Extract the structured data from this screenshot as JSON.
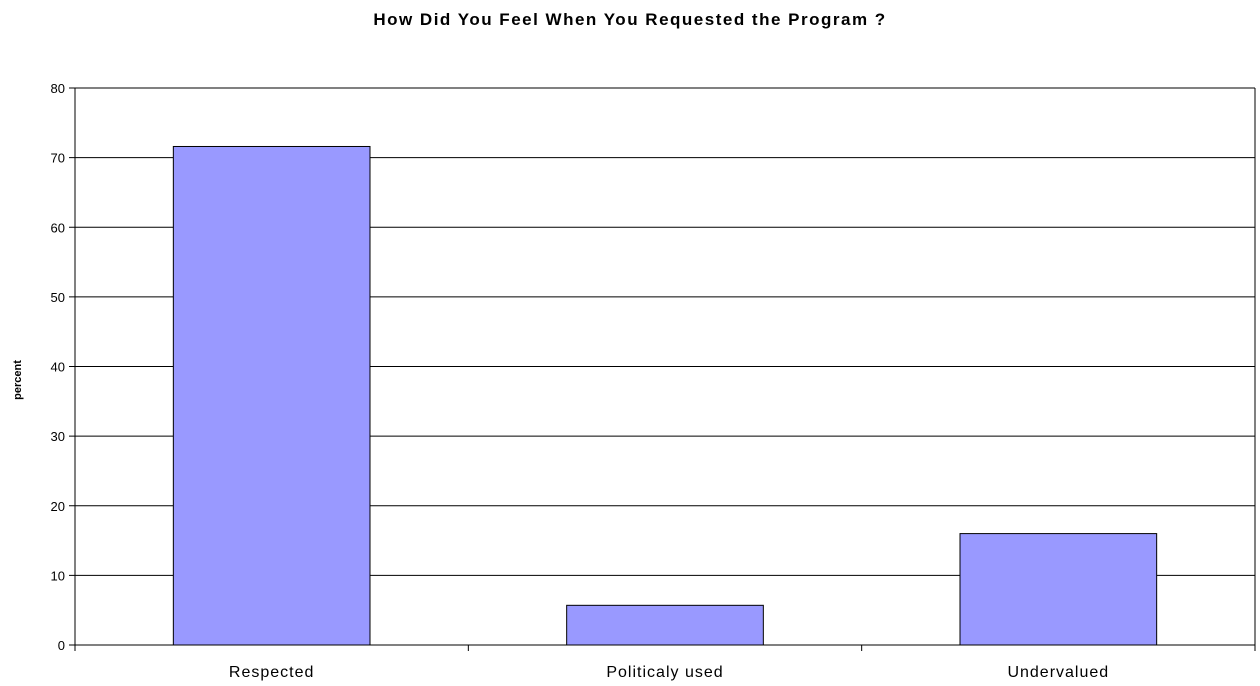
{
  "chart_data": {
    "type": "bar",
    "title": "How Did You Feel When You Requested the Program ?",
    "xlabel": "",
    "ylabel": "percent",
    "categories": [
      "Respected",
      "Politicaly used",
      "Undervalued"
    ],
    "values": [
      71.6,
      5.7,
      16.0
    ],
    "ylim": [
      0,
      80
    ],
    "yticks": [
      0,
      10,
      20,
      30,
      40,
      50,
      60,
      70,
      80
    ],
    "grid": true,
    "legend": "none",
    "bar_color": "#9999ff",
    "bar_edge_color": "#000000"
  }
}
